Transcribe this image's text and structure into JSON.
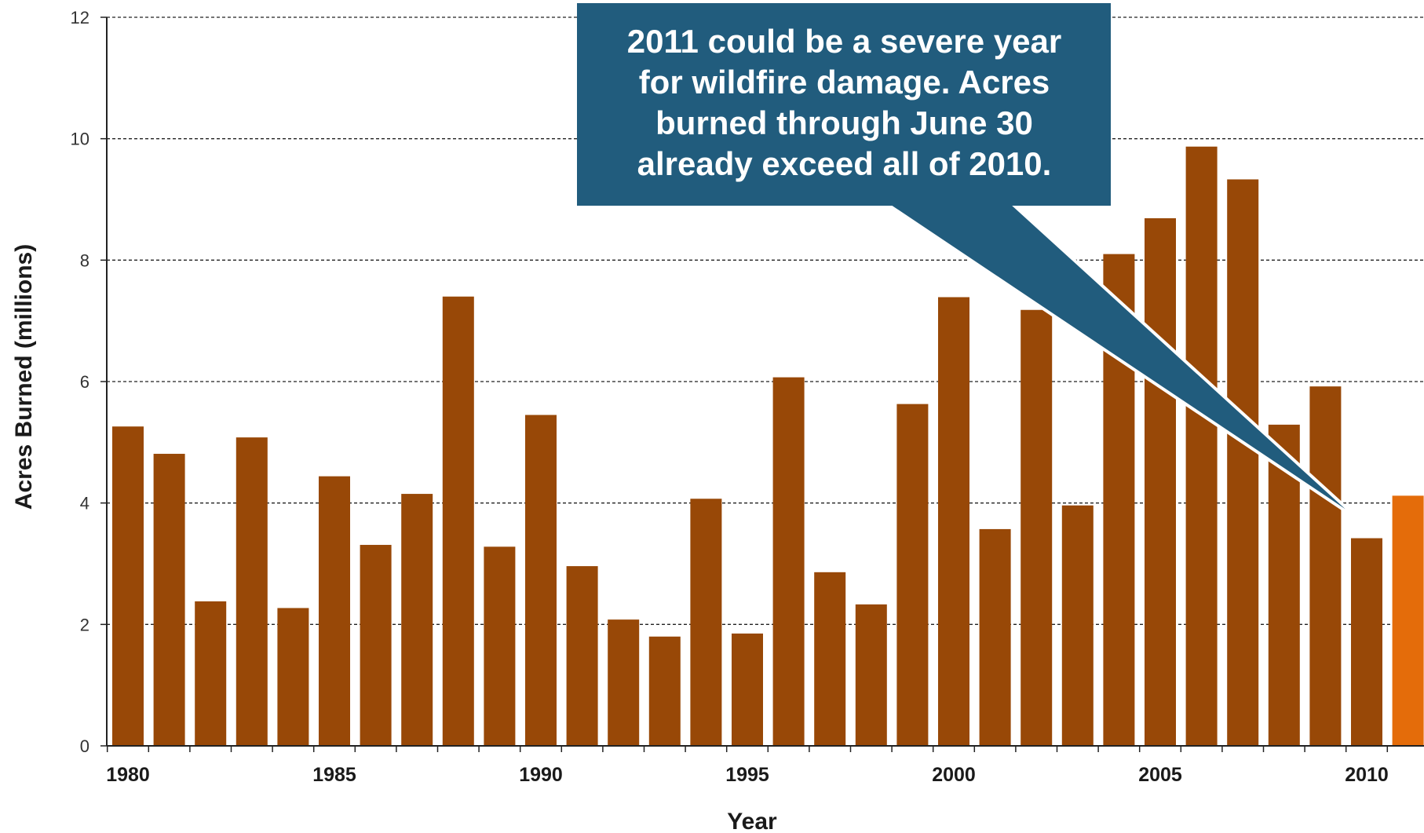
{
  "chart_data": {
    "type": "bar",
    "title": "",
    "xlabel": "Year",
    "ylabel": "Acres Burned (millions)",
    "ylim": [
      0,
      12
    ],
    "yticks": [
      0,
      2,
      4,
      6,
      8,
      10,
      12
    ],
    "xtick_labels": [
      "1980",
      "1985",
      "1990",
      "1995",
      "2000",
      "2005",
      "2010"
    ],
    "grid": "horizontal dashed",
    "categories": [
      "1980",
      "1981",
      "1982",
      "1983",
      "1984",
      "1985",
      "1986",
      "1987",
      "1988",
      "1989",
      "1990",
      "1991",
      "1992",
      "1993",
      "1994",
      "1995",
      "1996",
      "1997",
      "1998",
      "1999",
      "2000",
      "2001",
      "2002",
      "2003",
      "2004",
      "2005",
      "2006",
      "2007",
      "2008",
      "2009",
      "2010",
      "2011"
    ],
    "values": [
      5.26,
      4.81,
      2.38,
      5.08,
      2.27,
      4.44,
      3.31,
      4.15,
      7.4,
      3.28,
      5.45,
      2.96,
      2.08,
      1.8,
      4.07,
      1.85,
      6.07,
      2.86,
      2.33,
      5.63,
      7.39,
      3.57,
      7.18,
      3.96,
      8.1,
      8.69,
      9.87,
      9.33,
      5.29,
      5.92,
      3.42,
      4.12
    ],
    "colors": {
      "bar": "#984807",
      "highlight": "#E46C0A",
      "highlight_category": "2011"
    },
    "annotation": "2011 could be a severe year\nfor wildfire damage.  Acres\nburned through June 30\nalready exceed all of 2010."
  },
  "callout_colors": {
    "fill": "#215C7D",
    "stroke": "#ffffff"
  }
}
